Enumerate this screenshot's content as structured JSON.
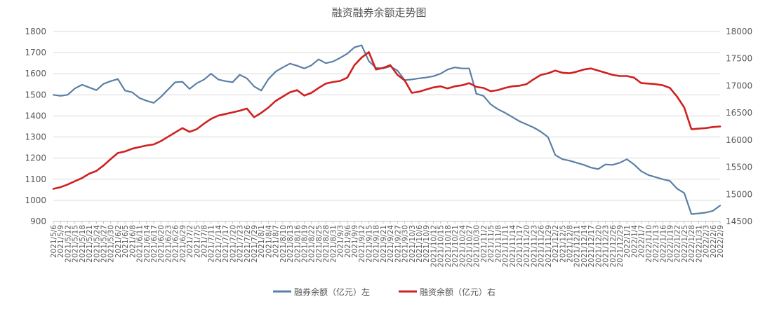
{
  "chart_data": {
    "type": "line",
    "title": "融资融券余额走势图",
    "xlabel": "",
    "ylabel": "",
    "x_tick_labels": [
      "2021/5/6",
      "2021/5/9",
      "2021/5/12",
      "2021/5/15",
      "2021/5/18",
      "2021/5/21",
      "2021/5/24",
      "2021/5/27",
      "2021/5/30",
      "2021/6/2",
      "2021/6/5",
      "2021/6/8",
      "2021/6/11",
      "2021/6/14",
      "2021/6/17",
      "2021/6/20",
      "2021/6/23",
      "2021/6/26",
      "2021/6/29",
      "2021/7/2",
      "2021/7/5",
      "2021/7/8",
      "2021/7/11",
      "2021/7/14",
      "2021/7/17",
      "2021/7/20",
      "2021/7/23",
      "2021/7/26",
      "2021/7/29",
      "2021/8/1",
      "2021/8/4",
      "2021/8/7",
      "2021/8/10",
      "2021/8/13",
      "2021/8/16",
      "2021/8/19",
      "2021/8/22",
      "2021/8/25",
      "2021/8/28",
      "2021/8/31",
      "2021/9/3",
      "2021/9/6",
      "2021/9/9",
      "2021/9/12",
      "2021/9/15",
      "2021/9/18",
      "2021/9/21",
      "2021/9/24",
      "2021/9/27",
      "2021/9/30",
      "2021/10/3",
      "2021/10/6",
      "2021/10/9",
      "2021/10/12",
      "2021/10/15",
      "2021/10/18",
      "2021/10/21",
      "2021/10/24",
      "2021/10/27",
      "2021/10/30",
      "2021/11/2",
      "2021/11/5",
      "2021/11/8",
      "2021/11/11",
      "2021/11/14",
      "2021/11/17",
      "2021/11/20",
      "2021/11/23",
      "2021/11/26",
      "2021/11/29",
      "2021/12/2",
      "2021/12/5",
      "2021/12/8",
      "2021/12/11",
      "2021/12/14",
      "2021/12/17",
      "2021/12/20",
      "2021/12/23",
      "2021/12/26",
      "2021/12/29",
      "2022/1/1",
      "2022/1/4",
      "2022/1/7",
      "2022/1/10",
      "2022/1/13",
      "2022/1/16",
      "2022/1/19",
      "2022/1/22",
      "2022/1/25",
      "2022/1/28",
      "2022/1/31",
      "2022/2/3",
      "2022/2/6",
      "2022/2/9"
    ],
    "y_left": {
      "min": 900,
      "max": 1800,
      "step": 100
    },
    "y_right": {
      "min": 14500,
      "max": 18000,
      "step": 500
    },
    "grid": true,
    "legend_position": "bottom",
    "series": [
      {
        "name": "融券余额（亿元）左",
        "axis": "left",
        "color": "#5B7FA6",
        "points": [
          [
            "2021/5/6",
            1500
          ],
          [
            "2021/5/9",
            1495
          ],
          [
            "2021/5/12",
            1500
          ],
          [
            "2021/5/15",
            1530
          ],
          [
            "2021/5/18",
            1548
          ],
          [
            "2021/5/21",
            1535
          ],
          [
            "2021/5/24",
            1522
          ],
          [
            "2021/5/27",
            1552
          ],
          [
            "2021/5/30",
            1565
          ],
          [
            "2021/6/2",
            1575
          ],
          [
            "2021/6/5",
            1520
          ],
          [
            "2021/6/8",
            1512
          ],
          [
            "2021/6/11",
            1485
          ],
          [
            "2021/6/14",
            1472
          ],
          [
            "2021/6/17",
            1462
          ],
          [
            "2021/6/20",
            1490
          ],
          [
            "2021/6/23",
            1525
          ],
          [
            "2021/6/26",
            1560
          ],
          [
            "2021/6/29",
            1562
          ],
          [
            "2021/7/2",
            1528
          ],
          [
            "2021/7/5",
            1555
          ],
          [
            "2021/7/8",
            1572
          ],
          [
            "2021/7/11",
            1600
          ],
          [
            "2021/7/14",
            1573
          ],
          [
            "2021/7/17",
            1565
          ],
          [
            "2021/7/20",
            1560
          ],
          [
            "2021/7/23",
            1595
          ],
          [
            "2021/7/26",
            1578
          ],
          [
            "2021/7/29",
            1540
          ],
          [
            "2021/8/1",
            1520
          ],
          [
            "2021/8/4",
            1575
          ],
          [
            "2021/8/7",
            1610
          ],
          [
            "2021/8/10",
            1630
          ],
          [
            "2021/8/13",
            1648
          ],
          [
            "2021/8/16",
            1638
          ],
          [
            "2021/8/19",
            1625
          ],
          [
            "2021/8/22",
            1640
          ],
          [
            "2021/8/25",
            1668
          ],
          [
            "2021/8/28",
            1650
          ],
          [
            "2021/8/31",
            1658
          ],
          [
            "2021/9/3",
            1675
          ],
          [
            "2021/9/6",
            1695
          ],
          [
            "2021/9/9",
            1725
          ],
          [
            "2021/9/12",
            1735
          ],
          [
            "2021/9/15",
            1660
          ],
          [
            "2021/9/18",
            1628
          ],
          [
            "2021/9/21",
            1625
          ],
          [
            "2021/9/24",
            1635
          ],
          [
            "2021/9/27",
            1615
          ],
          [
            "2021/9/30",
            1570
          ],
          [
            "2021/10/3",
            1573
          ],
          [
            "2021/10/6",
            1578
          ],
          [
            "2021/10/9",
            1582
          ],
          [
            "2021/10/12",
            1588
          ],
          [
            "2021/10/15",
            1600
          ],
          [
            "2021/10/18",
            1620
          ],
          [
            "2021/10/21",
            1630
          ],
          [
            "2021/10/24",
            1625
          ],
          [
            "2021/10/27",
            1625
          ],
          [
            "2021/10/30",
            1505
          ],
          [
            "2021/11/2",
            1495
          ],
          [
            "2021/11/5",
            1455
          ],
          [
            "2021/11/8",
            1432
          ],
          [
            "2021/11/11",
            1415
          ],
          [
            "2021/11/14",
            1395
          ],
          [
            "2021/11/17",
            1375
          ],
          [
            "2021/11/20",
            1360
          ],
          [
            "2021/11/23",
            1345
          ],
          [
            "2021/11/26",
            1325
          ],
          [
            "2021/11/29",
            1300
          ],
          [
            "2021/12/2",
            1215
          ],
          [
            "2021/12/5",
            1195
          ],
          [
            "2021/12/8",
            1188
          ],
          [
            "2021/12/11",
            1178
          ],
          [
            "2021/12/14",
            1168
          ],
          [
            "2021/12/17",
            1155
          ],
          [
            "2021/12/20",
            1148
          ],
          [
            "2021/12/23",
            1170
          ],
          [
            "2021/12/26",
            1168
          ],
          [
            "2021/12/29",
            1178
          ],
          [
            "2022/1/1",
            1195
          ],
          [
            "2022/1/4",
            1170
          ],
          [
            "2022/1/7",
            1138
          ],
          [
            "2022/1/10",
            1120
          ],
          [
            "2022/1/13",
            1110
          ],
          [
            "2022/1/16",
            1100
          ],
          [
            "2022/1/19",
            1092
          ],
          [
            "2022/1/22",
            1055
          ],
          [
            "2022/1/25",
            1035
          ],
          [
            "2022/1/28",
            935
          ],
          [
            "2022/1/31",
            938
          ],
          [
            "2022/2/3",
            942
          ],
          [
            "2022/2/6",
            950
          ],
          [
            "2022/2/9",
            975
          ]
        ]
      },
      {
        "name": "融资余额（亿元）右",
        "axis": "right",
        "color": "#D02020",
        "points": [
          [
            "2021/5/6",
            15100
          ],
          [
            "2021/5/9",
            15130
          ],
          [
            "2021/5/12",
            15180
          ],
          [
            "2021/5/15",
            15240
          ],
          [
            "2021/5/18",
            15300
          ],
          [
            "2021/5/21",
            15380
          ],
          [
            "2021/5/24",
            15430
          ],
          [
            "2021/5/27",
            15530
          ],
          [
            "2021/5/30",
            15650
          ],
          [
            "2021/6/2",
            15760
          ],
          [
            "2021/6/5",
            15790
          ],
          [
            "2021/6/8",
            15840
          ],
          [
            "2021/6/11",
            15870
          ],
          [
            "2021/6/14",
            15900
          ],
          [
            "2021/6/17",
            15920
          ],
          [
            "2021/6/20",
            15980
          ],
          [
            "2021/6/23",
            16060
          ],
          [
            "2021/6/26",
            16140
          ],
          [
            "2021/6/29",
            16220
          ],
          [
            "2021/7/2",
            16150
          ],
          [
            "2021/7/5",
            16200
          ],
          [
            "2021/7/8",
            16300
          ],
          [
            "2021/7/11",
            16390
          ],
          [
            "2021/7/14",
            16450
          ],
          [
            "2021/7/17",
            16480
          ],
          [
            "2021/7/20",
            16510
          ],
          [
            "2021/7/23",
            16540
          ],
          [
            "2021/7/26",
            16580
          ],
          [
            "2021/7/29",
            16420
          ],
          [
            "2021/8/1",
            16500
          ],
          [
            "2021/8/4",
            16600
          ],
          [
            "2021/8/7",
            16720
          ],
          [
            "2021/8/10",
            16800
          ],
          [
            "2021/8/13",
            16880
          ],
          [
            "2021/8/16",
            16920
          ],
          [
            "2021/8/19",
            16820
          ],
          [
            "2021/8/22",
            16870
          ],
          [
            "2021/8/25",
            16960
          ],
          [
            "2021/8/28",
            17040
          ],
          [
            "2021/8/31",
            17070
          ],
          [
            "2021/9/3",
            17090
          ],
          [
            "2021/9/6",
            17150
          ],
          [
            "2021/9/9",
            17380
          ],
          [
            "2021/9/12",
            17520
          ],
          [
            "2021/9/15",
            17620
          ],
          [
            "2021/9/18",
            17300
          ],
          [
            "2021/9/21",
            17330
          ],
          [
            "2021/9/24",
            17380
          ],
          [
            "2021/9/27",
            17200
          ],
          [
            "2021/9/30",
            17100
          ],
          [
            "2021/10/3",
            16870
          ],
          [
            "2021/10/6",
            16890
          ],
          [
            "2021/10/9",
            16930
          ],
          [
            "2021/10/12",
            16970
          ],
          [
            "2021/10/15",
            16990
          ],
          [
            "2021/10/18",
            16950
          ],
          [
            "2021/10/21",
            16990
          ],
          [
            "2021/10/24",
            17010
          ],
          [
            "2021/10/27",
            17050
          ],
          [
            "2021/10/30",
            16980
          ],
          [
            "2021/11/2",
            16960
          ],
          [
            "2021/11/5",
            16900
          ],
          [
            "2021/11/8",
            16920
          ],
          [
            "2021/11/11",
            16960
          ],
          [
            "2021/11/14",
            16990
          ],
          [
            "2021/11/17",
            17000
          ],
          [
            "2021/11/20",
            17030
          ],
          [
            "2021/11/23",
            17120
          ],
          [
            "2021/11/26",
            17200
          ],
          [
            "2021/11/29",
            17230
          ],
          [
            "2021/12/2",
            17280
          ],
          [
            "2021/12/5",
            17240
          ],
          [
            "2021/12/8",
            17230
          ],
          [
            "2021/12/11",
            17260
          ],
          [
            "2021/12/14",
            17300
          ],
          [
            "2021/12/17",
            17320
          ],
          [
            "2021/12/20",
            17280
          ],
          [
            "2021/12/23",
            17240
          ],
          [
            "2021/12/26",
            17200
          ],
          [
            "2021/12/29",
            17180
          ],
          [
            "2022/1/1",
            17180
          ],
          [
            "2022/1/4",
            17150
          ],
          [
            "2022/1/7",
            17050
          ],
          [
            "2022/1/10",
            17040
          ],
          [
            "2022/1/13",
            17030
          ],
          [
            "2022/1/16",
            17010
          ],
          [
            "2022/1/19",
            16960
          ],
          [
            "2022/1/22",
            16800
          ],
          [
            "2022/1/25",
            16600
          ],
          [
            "2022/1/28",
            16200
          ],
          [
            "2022/1/31",
            16210
          ],
          [
            "2022/2/3",
            16220
          ],
          [
            "2022/2/6",
            16240
          ],
          [
            "2022/2/9",
            16250
          ]
        ]
      }
    ]
  }
}
